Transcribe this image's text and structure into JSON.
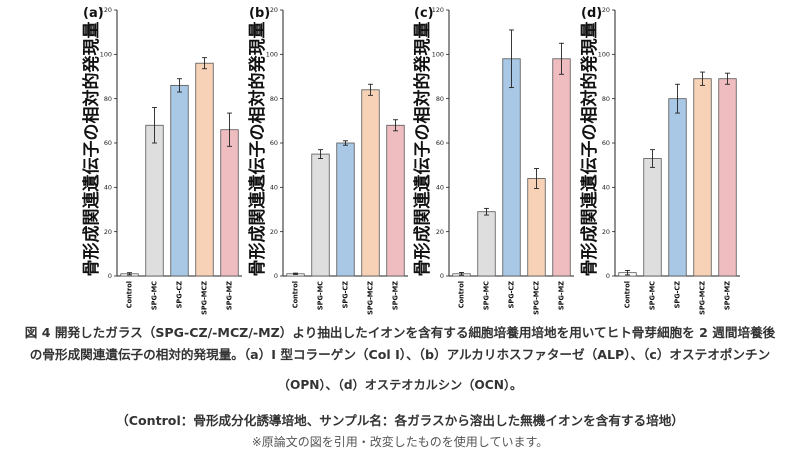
{
  "chart_data": [
    {
      "type": "bar",
      "panel_label": "(a)",
      "ylabel": "骨形成関連遺伝子の相対的発現量",
      "categories": [
        "Control",
        "SPG-MC",
        "SPG-CZ",
        "SPG-MCZ",
        "SPG-MZ"
      ],
      "values": [
        1,
        68,
        86,
        96,
        66
      ],
      "errors": [
        0.5,
        8,
        3,
        2.5,
        7.5
      ],
      "yticks": [
        0,
        20,
        40,
        60,
        80,
        100,
        120
      ],
      "ylim": [
        0,
        120
      ],
      "bar_colors": [
        "#ffffff",
        "#dedede",
        "#a8c8e6",
        "#f8d2b6",
        "#efbcc0"
      ]
    },
    {
      "type": "bar",
      "panel_label": "(b)",
      "ylabel": "骨形成関連遺伝子の相対的発現量",
      "categories": [
        "Control",
        "SPG-MC",
        "SPG-CZ",
        "SPG-MCZ",
        "SPG-MZ"
      ],
      "values": [
        1,
        55,
        60,
        84,
        68
      ],
      "errors": [
        0.3,
        2,
        1,
        2.5,
        2.5
      ],
      "yticks": [
        0,
        20,
        40,
        60,
        80,
        100,
        120
      ],
      "ylim": [
        0,
        120
      ],
      "bar_colors": [
        "#ffffff",
        "#dedede",
        "#a8c8e6",
        "#f8d2b6",
        "#efbcc0"
      ]
    },
    {
      "type": "bar",
      "panel_label": "(c)",
      "ylabel": "骨形成関連遺伝子の相対的発現量",
      "categories": [
        "Control",
        "SPG-MC",
        "SPG-CZ",
        "SPG-MCZ",
        "SPG-MZ"
      ],
      "values": [
        1,
        29,
        98,
        44,
        98
      ],
      "errors": [
        0.6,
        1.5,
        13,
        4.5,
        7
      ],
      "yticks": [
        0,
        20,
        40,
        60,
        80,
        100,
        120
      ],
      "ylim": [
        0,
        120
      ],
      "bar_colors": [
        "#ffffff",
        "#dedede",
        "#a8c8e6",
        "#f8d2b6",
        "#efbcc0"
      ]
    },
    {
      "type": "bar",
      "panel_label": "(d)",
      "ylabel": "骨形成関連遺伝子の相対的発現量",
      "categories": [
        "Control",
        "SPG-MC",
        "SPG-CZ",
        "SPG-MCZ",
        "SPG-MZ"
      ],
      "values": [
        1.5,
        53,
        80,
        89,
        89
      ],
      "errors": [
        1,
        4,
        6.5,
        3,
        2.5
      ],
      "yticks": [
        0,
        20,
        40,
        60,
        80,
        100,
        120
      ],
      "ylim": [
        0,
        120
      ],
      "bar_colors": [
        "#ffffff",
        "#dedede",
        "#a8c8e6",
        "#f8d2b6",
        "#efbcc0"
      ]
    }
  ],
  "caption": {
    "line1": "図 4  開発したガラス（SPG-CZ/-MCZ/-MZ）より抽出したイオンを含有する細胞培養用培地を用いてヒト骨芽細胞を 2 週間培養後",
    "line2": "の骨形成関連遺伝子の相対的発現量。（a）I 型コラーゲン（Col I）、（b）アルカリホスファターゼ（ALP）、（c）オステオポンチン",
    "line3": "（OPN）、（d）オステオカルシン（OCN）。",
    "line4": "（Control：骨形成分化誘導培地、サンプル名：各ガラスから溶出した無機イオンを含有する培地）",
    "note": "※原論文の図を引用・改変したものを使用しています。"
  },
  "colors": {
    "bar_stroke": "#555555",
    "axis": "#222222",
    "caption_text": "#333333",
    "note_text": "#555555"
  }
}
